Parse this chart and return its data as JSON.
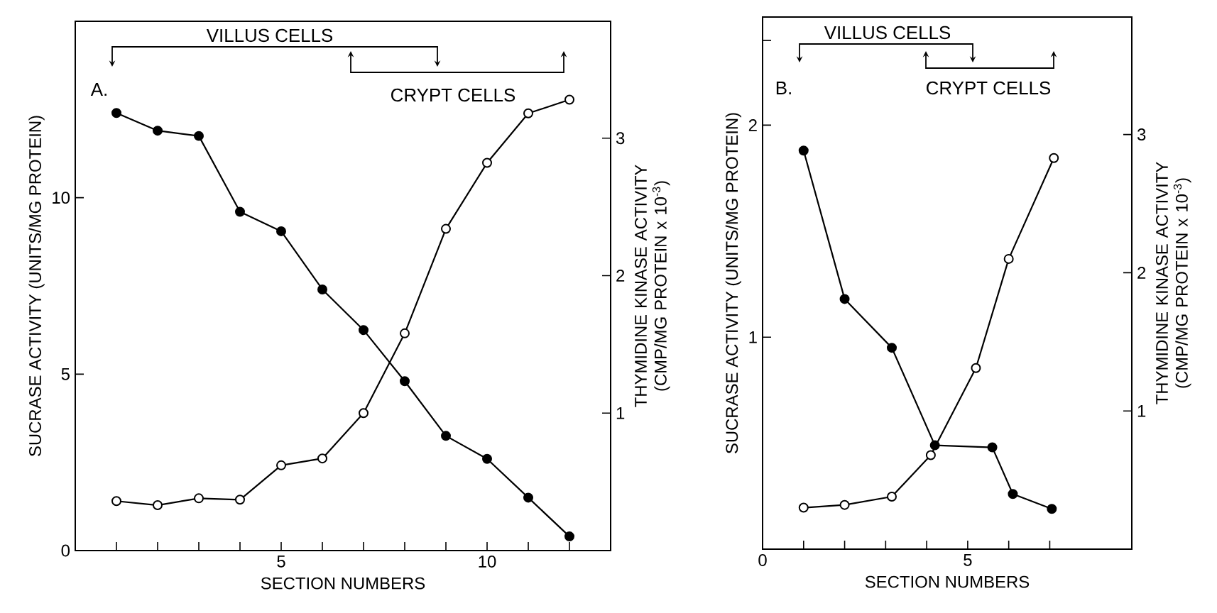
{
  "chart_data": [
    {
      "type": "line",
      "xlabel": "SECTION NUMBERS",
      "ylabel": "SUCRASE ACTIVITY (UNITS/MG PROTEIN)",
      "y2label": "THYMIDINE KINASE ACTIVITY (CMP/MG PROTEIN x 10$^{-3}$)",
      "annotations": [
        "VILLUS CELLS",
        "CRYPT CELLS",
        "A."
      ],
      "x": [
        1,
        2,
        3,
        4,
        5,
        6,
        7,
        8,
        9,
        10,
        11,
        12
      ],
      "xlim": [
        0,
        13
      ],
      "ylim": [
        0,
        15
      ],
      "y2lim": [
        0,
        3.85
      ],
      "xticks": [
        {
          "value": 1,
          "label": null
        },
        {
          "value": 2,
          "label": null
        },
        {
          "value": 3,
          "label": null
        },
        {
          "value": 4,
          "label": null
        },
        5,
        {
          "value": 6,
          "label": null
        },
        {
          "value": 7,
          "label": null
        },
        {
          "value": 8,
          "label": null
        },
        {
          "value": 9,
          "label": null
        },
        10,
        {
          "value": 11,
          "label": null
        },
        {
          "value": 12,
          "label": null
        }
      ],
      "yticks": [
        0,
        5,
        10
      ],
      "y2ticks": [
        1,
        2,
        3
      ],
      "marker": "circle",
      "line_style": "solid",
      "series": [
        {
          "color": "#000000",
          "values": [
            12.4,
            11.9,
            11.75,
            9.6,
            9.05,
            7.4,
            6.25,
            4.8,
            3.25,
            2.6,
            1.5,
            0.4
          ]
        },
        {
          "color": "#000000",
          "axis": "y2",
          "values": [
            0.36,
            0.33,
            0.38,
            0.37,
            0.62,
            0.67,
            1.0,
            1.58,
            2.34,
            2.82,
            3.18,
            3.28
          ]
        }
      ]
    },
    {
      "type": "line",
      "xlabel": "SECTION NUMBERS",
      "ylabel": "SUCRASE ACTIVITY (UNITS/MG PROTEIN)",
      "y2label": "THYMIDINE KINASE ACTIVITY (CMP/MG PROTEIN x 10$^{-3}$)",
      "annotations": [
        "VILLUS CELLS",
        "CRYPT CELLS",
        "B."
      ],
      "xlim": [
        0,
        9
      ],
      "ylim": [
        0,
        2.51
      ],
      "y2lim": [
        0,
        3.85
      ],
      "xticks": [
        0,
        {
          "value": 1,
          "label": null
        },
        {
          "value": 2,
          "label": null
        },
        {
          "value": 3,
          "label": null
        },
        {
          "value": 4,
          "label": null
        },
        5,
        {
          "value": 6,
          "label": null
        },
        {
          "value": 7,
          "label": null
        }
      ],
      "yticks": [
        1,
        2,
        {
          "value": 2.4,
          "label": null
        }
      ],
      "y2ticks": [
        1,
        2,
        3
      ],
      "marker": "circle",
      "line_style": "solid",
      "series": [
        {
          "color": "#000000",
          "x": [
            1,
            2,
            3.15,
            4.2,
            5.6,
            6.1,
            7.05
          ],
          "values": [
            1.88,
            1.18,
            0.95,
            0.49,
            0.48,
            0.26,
            0.19
          ]
        },
        {
          "color": "#000000",
          "axis": "y2",
          "x": [
            1,
            2,
            3.15,
            4.1,
            5.2,
            6.0,
            7.1
          ],
          "values": [
            0.3,
            0.32,
            0.38,
            0.68,
            1.31,
            2.1,
            2.83
          ]
        }
      ]
    }
  ]
}
